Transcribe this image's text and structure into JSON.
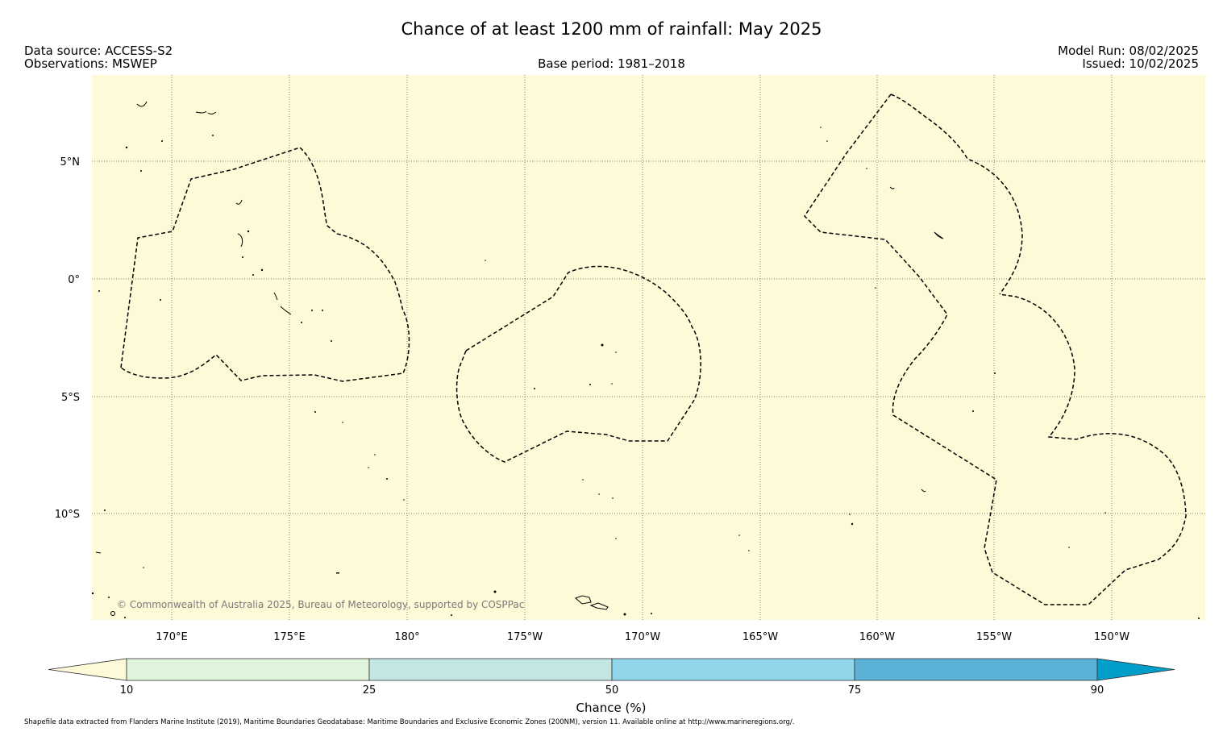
{
  "title": "Chance of at least 1200 mm of rainfall: May 2025",
  "header": {
    "data_source": "Data source: ACCESS-S2",
    "observations": "Observations: MSWEP",
    "base_period": "Base period: 1981–2018",
    "model_run": "Model Run: 08/02/2025",
    "issued": "Issued: 10/02/2025"
  },
  "map": {
    "background_color": "#fef9d7",
    "lat_labels": [
      "5°N",
      "0°",
      "5°S",
      "10°S"
    ],
    "lon_labels": [
      "170°E",
      "175°E",
      "180°",
      "175°W",
      "170°W",
      "165°W",
      "160°W",
      "155°W",
      "150°W"
    ],
    "copyright": "© Commonwealth of Australia 2025, Bureau of Meteorology, supported by COSPPac"
  },
  "colorbar": {
    "label": "Chance (%)",
    "ticks": [
      "10",
      "25",
      "50",
      "75",
      "90"
    ],
    "colors": [
      "#fef9d7",
      "#e0f3db",
      "#c4e6e3",
      "#90d5ea",
      "#5cb2d6",
      "#009ec8"
    ]
  },
  "footer": {
    "attribution": "Shapefile data extracted from Flanders Marine Institute (2019), Maritime Boundaries Geodatabase: Maritime Boundaries and Exclusive Economic Zones (200NM), version 11. Available online at http://www.marineregions.org/."
  }
}
